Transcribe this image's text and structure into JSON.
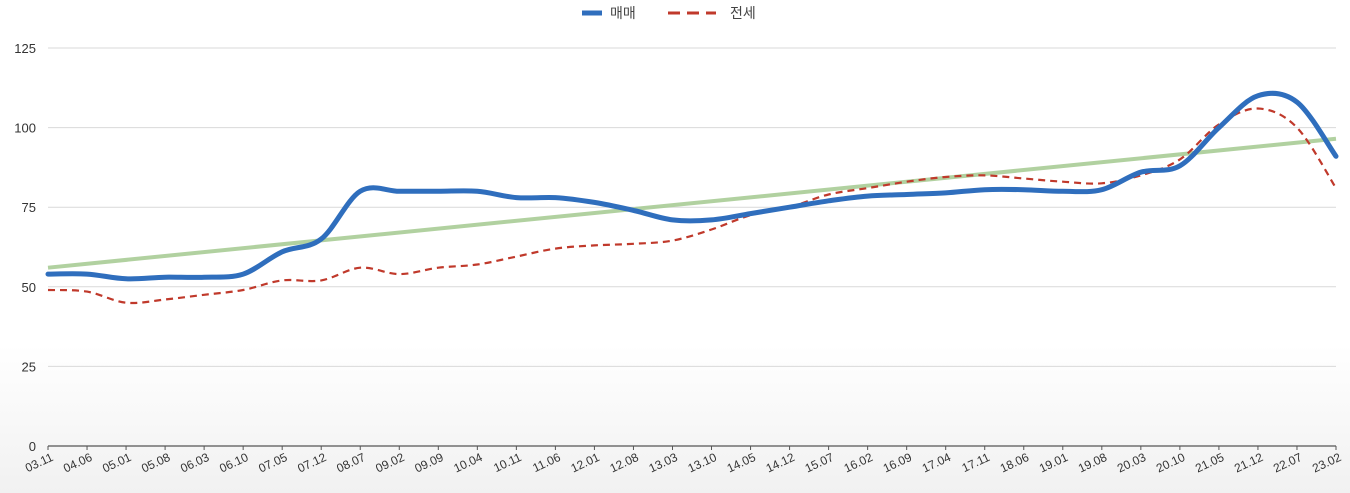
{
  "chart_data": {
    "type": "line",
    "ylim": [
      0,
      125
    ],
    "yticks": [
      "0",
      "25",
      "50",
      "75",
      "100",
      "125"
    ],
    "grid": true,
    "legend": "top-center",
    "colors": {
      "매매": "#2f6ebd",
      "전세": "#c0392b",
      "trend": "#a8cc96"
    },
    "categories": [
      "03.11",
      "04.06",
      "05.01",
      "05.08",
      "06.03",
      "06.10",
      "07.05",
      "07.12",
      "08.07",
      "09.02",
      "09.09",
      "10.04",
      "10.11",
      "11.06",
      "12.01",
      "12.08",
      "13.03",
      "13.10",
      "14.05",
      "14.12",
      "15.07",
      "16.02",
      "16.09",
      "17.04",
      "17.11",
      "18.06",
      "19.01",
      "19.08",
      "20.03",
      "20.10",
      "21.05",
      "21.12",
      "22.07",
      "23.02"
    ],
    "series": [
      {
        "name": "매매",
        "style": "solid",
        "x": [
          "03.11",
          "04.06",
          "05.01",
          "05.08",
          "06.03",
          "06.10",
          "07.05",
          "07.12",
          "08.07",
          "09.02",
          "09.09",
          "10.04",
          "10.11",
          "11.06",
          "12.01",
          "12.08",
          "13.03",
          "13.10",
          "14.05",
          "14.12",
          "15.07",
          "16.02",
          "16.09",
          "17.04",
          "17.11",
          "18.06",
          "19.01",
          "19.08",
          "20.03",
          "20.10",
          "21.05",
          "21.12",
          "22.07",
          "23.02"
        ],
        "values": [
          54,
          54,
          52.5,
          53,
          53,
          54,
          61,
          65,
          80,
          80,
          80,
          80,
          78,
          78,
          76.5,
          74,
          71,
          71,
          73,
          75,
          77,
          78.5,
          79,
          79.5,
          80.5,
          80.5,
          80,
          80.5,
          86,
          88,
          100,
          110,
          108,
          91
        ]
      },
      {
        "name": "전세",
        "style": "dashed",
        "x": [
          "03.11",
          "04.06",
          "05.01",
          "05.08",
          "06.03",
          "06.10",
          "07.05",
          "07.12",
          "08.07",
          "09.02",
          "09.09",
          "10.04",
          "10.11",
          "11.06",
          "12.01",
          "12.08",
          "13.03",
          "13.10",
          "14.05",
          "14.12",
          "15.07",
          "16.02",
          "16.09",
          "17.04",
          "17.11",
          "18.06",
          "19.01",
          "19.08",
          "20.03",
          "20.10",
          "21.05",
          "21.12",
          "22.07",
          "23.02"
        ],
        "values": [
          49,
          48.5,
          45,
          46,
          47.5,
          49,
          52,
          52,
          56,
          54,
          56,
          57,
          59.5,
          62,
          63,
          63.5,
          64.5,
          68,
          72.5,
          75,
          79,
          81,
          83,
          84.5,
          85,
          84,
          83,
          82.5,
          85,
          90,
          101,
          106,
          100,
          81
        ]
      },
      {
        "style": "trend",
        "x": [
          "03.11",
          "23.02"
        ],
        "values": [
          56,
          96.5
        ]
      }
    ]
  }
}
